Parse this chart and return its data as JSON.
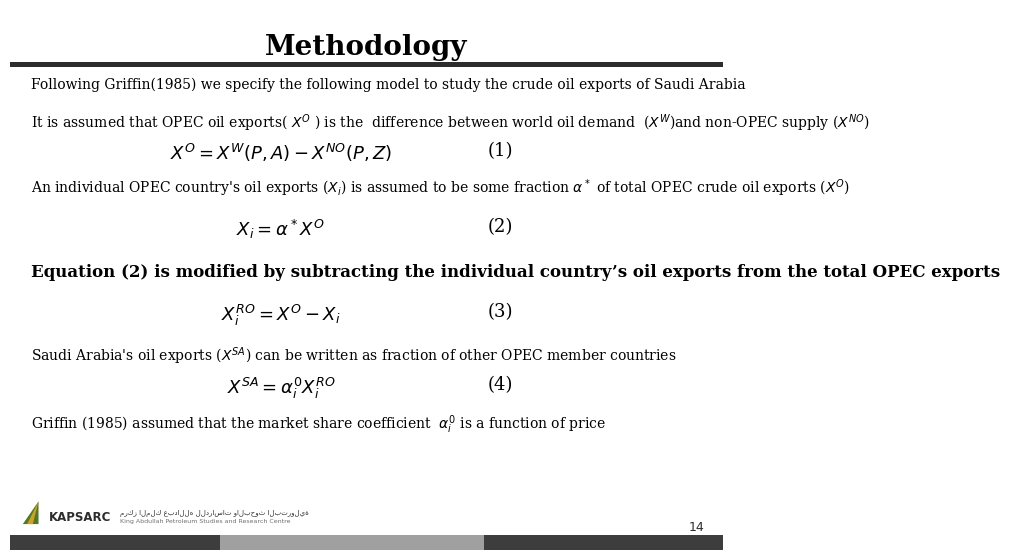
{
  "title": "Methodology",
  "title_fontsize": 20,
  "bg_color": "#ffffff",
  "title_bar_color": "#2d2d2d",
  "footer_bar_color_dark": "#3d3d3d",
  "page_number": "14",
  "line1": "Following Griffin(1985) we specify the following model to study the crude oil exports of Saudi Arabia",
  "line2": "It is assumed that OPEC oil exports( $X^O$ ) is the  difference between world oil demand  ($X^W$)and non-OPEC supply ($X^{NO}$)",
  "eq1": "$X^O = X^W(P,A) - X^{NO}(P,Z)$",
  "eq1_label": "(1)",
  "line3": "An individual OPEC country's oil exports ($X_i$) is assumed to be some fraction $\\alpha^*$ of total OPEC crude oil exports ($X^O$)",
  "eq2": "$X_i = \\alpha^* X^O$",
  "eq2_label": "(2)",
  "line4": "Equation (2) is modified by subtracting the individual country’s oil exports from the total OPEC exports",
  "eq3": "$X_i^{RO}=  X^O - X_i$",
  "eq3_label": "(3)",
  "line5": "Saudi Arabia's oil exports ($X^{SA}$) can be written as fraction of other OPEC member countries",
  "eq4": "$X^{SA} = \\alpha_i^{\\prime} X_i^{RO}$",
  "eq4_label": "(4)",
  "line6": "Griffin (1985) assumed that the market share coefficient  $\\alpha_i^{\\prime}$ is a function of price",
  "text_fontsize": 10,
  "eq_fontsize": 13,
  "line4_fontsize": 12
}
